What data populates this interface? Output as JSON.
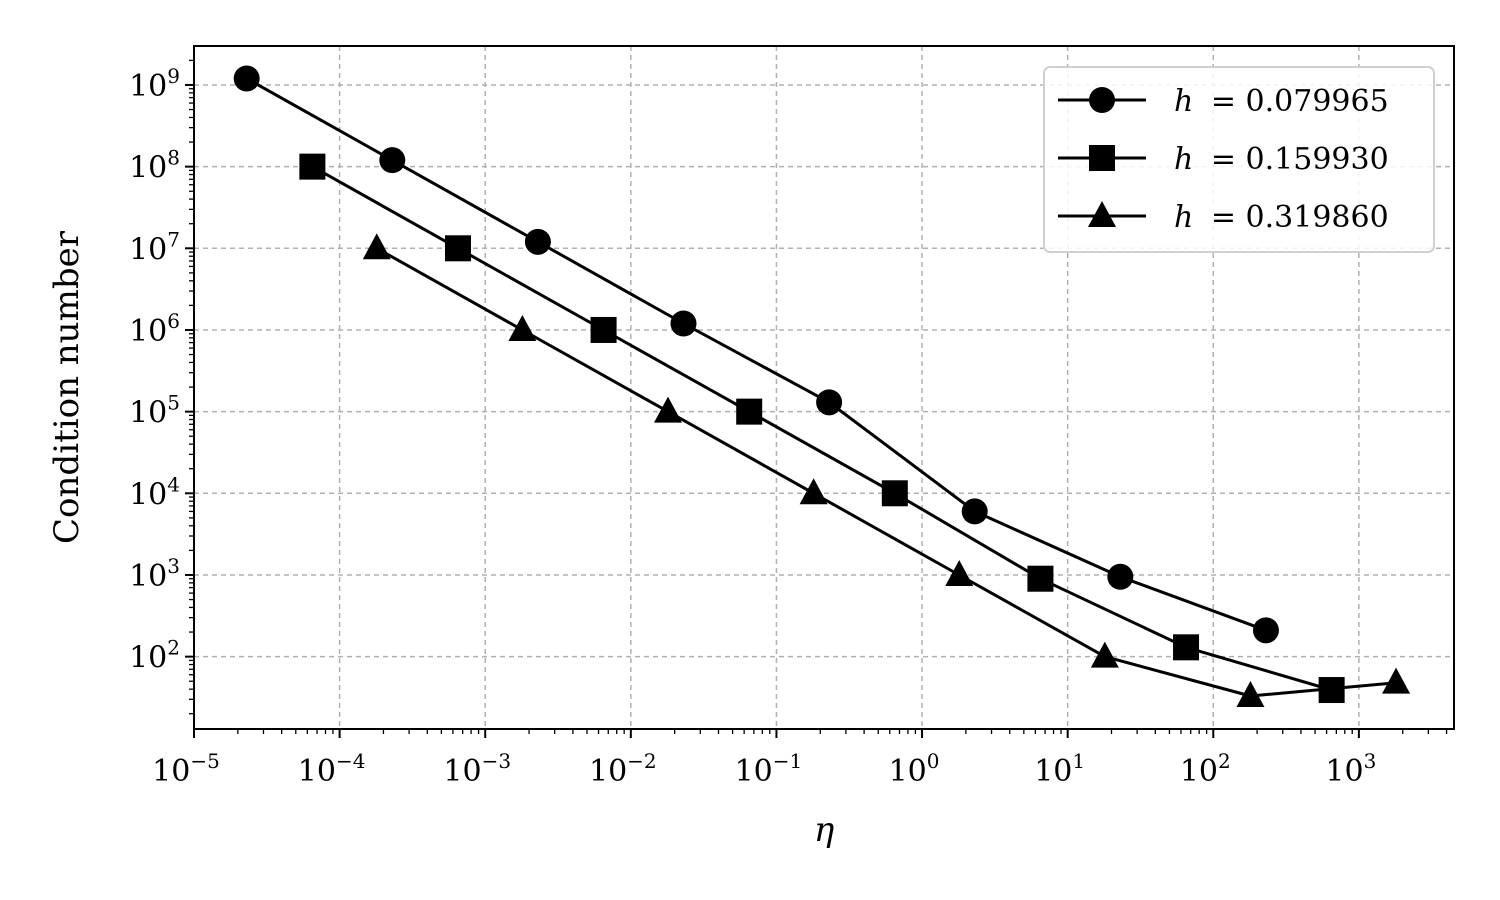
{
  "chart_data": {
    "type": "line",
    "xlabel": "η",
    "ylabel": "Condition number",
    "xscale": "log",
    "yscale": "log",
    "xlim": [
      1e-05,
      4500
    ],
    "ylim": [
      13,
      3000000000.0
    ],
    "grid": true,
    "legend_position": "top-right",
    "x_ticks": [
      {
        "value": 1e-05,
        "base": "10",
        "exp": "−5"
      },
      {
        "value": 0.0001,
        "base": "10",
        "exp": "−4"
      },
      {
        "value": 0.001,
        "base": "10",
        "exp": "−3"
      },
      {
        "value": 0.01,
        "base": "10",
        "exp": "−2"
      },
      {
        "value": 0.1,
        "base": "10",
        "exp": "−1"
      },
      {
        "value": 1,
        "base": "10",
        "exp": "0"
      },
      {
        "value": 10,
        "base": "10",
        "exp": "1"
      },
      {
        "value": 100,
        "base": "10",
        "exp": "2"
      },
      {
        "value": 1000,
        "base": "10",
        "exp": "3"
      }
    ],
    "y_ticks": [
      {
        "value": 100.0,
        "base": "10",
        "exp": "2"
      },
      {
        "value": 1000.0,
        "base": "10",
        "exp": "3"
      },
      {
        "value": 10000.0,
        "base": "10",
        "exp": "4"
      },
      {
        "value": 100000.0,
        "base": "10",
        "exp": "5"
      },
      {
        "value": 1000000.0,
        "base": "10",
        "exp": "6"
      },
      {
        "value": 10000000.0,
        "base": "10",
        "exp": "7"
      },
      {
        "value": 100000000.0,
        "base": "10",
        "exp": "8"
      },
      {
        "value": 1000000000.0,
        "base": "10",
        "exp": "9"
      }
    ],
    "series": [
      {
        "name": "h = 0.079965",
        "label_var": "h",
        "label_value": "= 0.079965",
        "marker": "circle",
        "color": "#000000",
        "x": [
          2.3e-05,
          0.00023,
          0.0023,
          0.023,
          0.23,
          2.3,
          23,
          230
        ],
        "y": [
          1200000000.0,
          120000000.0,
          12000000.0,
          1200000.0,
          130000.0,
          6000,
          950,
          210
        ]
      },
      {
        "name": "h = 0.159930",
        "label_var": "h",
        "label_value": "= 0.159930",
        "marker": "square",
        "color": "#000000",
        "x": [
          6.5e-05,
          0.00065,
          0.0065,
          0.065,
          0.65,
          6.5,
          65,
          650
        ],
        "y": [
          100000000.0,
          10000000.0,
          1000000.0,
          100000.0,
          10000.0,
          900,
          130,
          39
        ]
      },
      {
        "name": "h = 0.319860",
        "label_var": "h",
        "label_value": "= 0.319860",
        "marker": "triangle",
        "color": "#000000",
        "x": [
          0.00018,
          0.0018,
          0.018,
          0.18,
          1.8,
          18,
          180,
          1800
        ],
        "y": [
          10000000.0,
          1000000.0,
          100000.0,
          10000.0,
          1000,
          100,
          33,
          48
        ]
      }
    ]
  }
}
